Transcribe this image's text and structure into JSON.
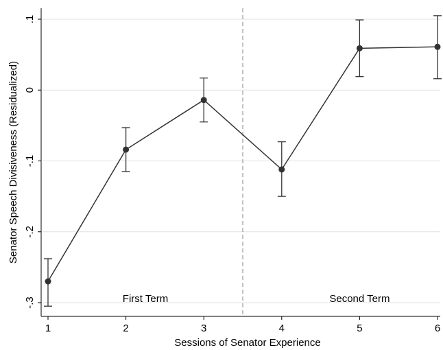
{
  "chart_data": {
    "type": "line",
    "title": "",
    "xlabel": "Sessions of Senator Experience",
    "ylabel": "Senator Speech Divisiveness (Residualized)",
    "x": [
      1,
      2,
      3,
      4,
      5,
      6
    ],
    "x_ticks": [
      "1",
      "2",
      "3",
      "4",
      "5",
      "6"
    ],
    "xlim": [
      1,
      6
    ],
    "y_ticks": [
      -0.3,
      -0.2,
      -0.1,
      0,
      0.1
    ],
    "y_tick_labels": [
      "-.3",
      "-.2",
      "-.1",
      "0",
      ".1"
    ],
    "ylim": [
      -0.3,
      0.1
    ],
    "grid": true,
    "series": [
      {
        "values": [
          -0.27,
          -0.084,
          -0.014,
          -0.112,
          0.059,
          0.061
        ],
        "ci_low": [
          -0.305,
          -0.115,
          -0.045,
          -0.15,
          0.019,
          0.016
        ],
        "ci_high": [
          -0.238,
          -0.053,
          0.017,
          -0.073,
          0.099,
          0.105
        ],
        "color": "#333333"
      }
    ],
    "divider_x": 3.5,
    "annotations": [
      {
        "text": "First Term",
        "x": 2.25,
        "y": -0.3
      },
      {
        "text": "Second Term",
        "x": 5.0,
        "y": -0.3
      }
    ],
    "colors": {
      "line": "#333333",
      "grid": "#e1e1e1",
      "divider": "#999999",
      "axis": "#000000"
    }
  }
}
